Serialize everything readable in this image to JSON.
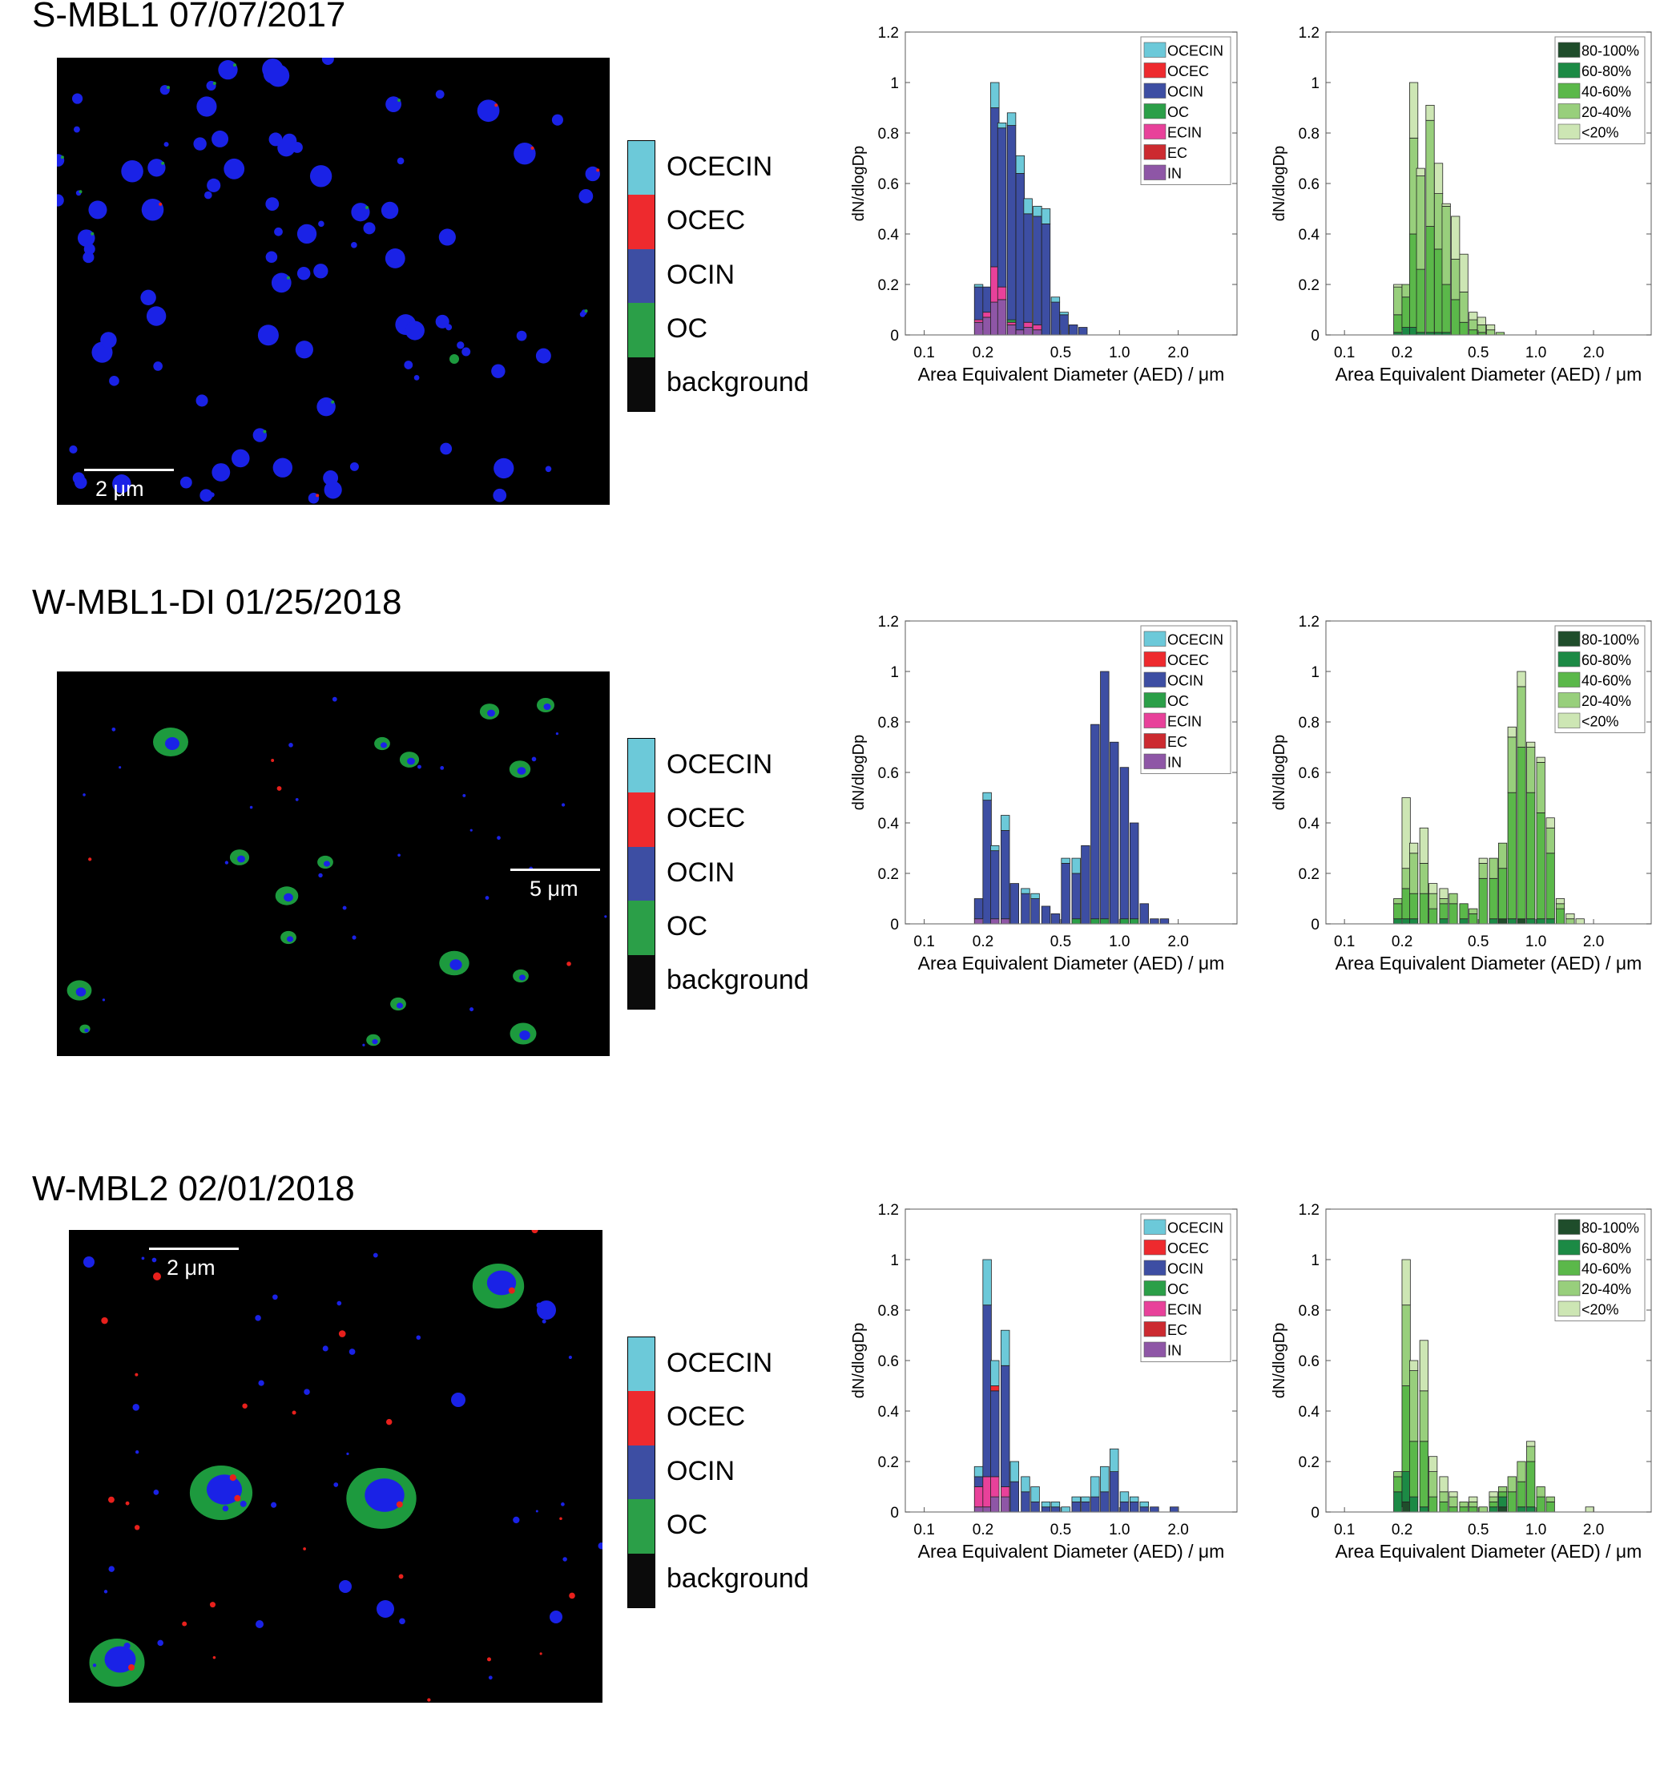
{
  "panels": [
    {
      "title": "S-MBL1 07/07/2017",
      "scale_label": "2 μm",
      "colorbar": [
        "OCECIN",
        "OCEC",
        "OCIN",
        "OC",
        "background"
      ],
      "micro_style": "blue"
    },
    {
      "title": "W-MBL1-DI 01/25/2018",
      "scale_label": "5 μm",
      "colorbar": [
        "OCECIN",
        "OCEC",
        "OCIN",
        "OC",
        "background"
      ],
      "micro_style": "green-ring"
    },
    {
      "title": "W-MBL2 02/01/2018",
      "scale_label": "2 μm",
      "colorbar": [
        "OCECIN",
        "OCEC",
        "OCIN",
        "OC",
        "background"
      ],
      "micro_style": "mixed"
    }
  ],
  "colors": {
    "OCECIN": "#6cc9d9",
    "OCEC": "#ee2a2e",
    "OCIN": "#3d4ea3",
    "OC": "#2b9f48",
    "ECIN": "#e8419a",
    "EC": "#cc2a30",
    "IN": "#8e56a6",
    "background": "#0b0b0b",
    "80-100%": "#1f4d2b",
    "60-80%": "#1c8a45",
    "40-60%": "#5bb84a",
    "20-40%": "#98cf7c",
    "<20%": "#cde6b4"
  },
  "axis": {
    "ylabel": "dN/dlogDp",
    "xlabel": "Area Equivalent Diameter (AED) / μm",
    "yticks": [
      "0",
      "0.2",
      "0.4",
      "0.6",
      "0.8",
      "1",
      "1.2"
    ],
    "xticks_row1": [
      "0.1",
      "0.2",
      "0.5",
      "1.0",
      "2.0"
    ],
    "xticks_row2": [
      "0.1",
      "0.2",
      "0.5",
      "1.0",
      "2.0"
    ],
    "xticks_row3": [
      "0.1",
      "0.2",
      "0.5",
      "1.0",
      "2.0"
    ]
  },
  "chart_data": [
    {
      "type": "bar",
      "stacked": true,
      "panel": "S-MBL1 07/07/2017",
      "legend": [
        "OCECIN",
        "OCEC",
        "OCIN",
        "OC",
        "ECIN",
        "EC",
        "IN"
      ],
      "legend_position": "top-right",
      "bins_AED_um": [
        0.19,
        0.21,
        0.23,
        0.25,
        0.28,
        0.31,
        0.34,
        0.38,
        0.42,
        0.47,
        0.52,
        0.58,
        0.65
      ],
      "xlim": [
        0.08,
        4.0
      ],
      "ylim": [
        0,
        1.2
      ],
      "series": [
        {
          "name": "IN",
          "values": [
            0.05,
            0.07,
            0.13,
            0.14,
            0.04,
            0.02,
            0.03,
            0.02,
            0,
            0,
            0,
            0,
            0
          ]
        },
        {
          "name": "EC",
          "values": [
            0,
            0,
            0,
            0,
            0,
            0,
            0,
            0,
            0,
            0,
            0,
            0,
            0
          ]
        },
        {
          "name": "ECIN",
          "values": [
            0.01,
            0.02,
            0.14,
            0.05,
            0.01,
            0,
            0.02,
            0.02,
            0,
            0,
            0,
            0,
            0
          ]
        },
        {
          "name": "OC",
          "values": [
            0,
            0,
            0,
            0,
            0.01,
            0,
            0,
            0,
            0,
            0,
            0,
            0,
            0
          ]
        },
        {
          "name": "OCIN",
          "values": [
            0.13,
            0.1,
            0.63,
            0.63,
            0.77,
            0.62,
            0.43,
            0.43,
            0.44,
            0.13,
            0.08,
            0.04,
            0.03
          ]
        },
        {
          "name": "OCEC",
          "values": [
            0,
            0,
            0,
            0,
            0,
            0,
            0,
            0,
            0,
            0,
            0,
            0,
            0
          ]
        },
        {
          "name": "OCECIN",
          "values": [
            0.01,
            0,
            0.1,
            0.02,
            0.05,
            0.07,
            0.06,
            0.04,
            0.06,
            0.02,
            0.01,
            0,
            0
          ]
        }
      ]
    },
    {
      "type": "bar",
      "stacked": true,
      "panel": "S-MBL1 07/07/2017",
      "legend": [
        "80-100%",
        "60-80%",
        "40-60%",
        "20-40%",
        "<20%"
      ],
      "legend_position": "top-right",
      "bins_AED_um": [
        0.19,
        0.21,
        0.23,
        0.25,
        0.28,
        0.31,
        0.34,
        0.38,
        0.42,
        0.47,
        0.52,
        0.58,
        0.65
      ],
      "xlim": [
        0.08,
        4.0
      ],
      "ylim": [
        0,
        1.2
      ],
      "series": [
        {
          "name": "80-100%",
          "values": [
            0,
            0,
            0,
            0,
            0,
            0,
            0,
            0,
            0,
            0,
            0,
            0,
            0
          ]
        },
        {
          "name": "60-80%",
          "values": [
            0.01,
            0.03,
            0.03,
            0.01,
            0.01,
            0.01,
            0.01,
            0,
            0,
            0,
            0,
            0,
            0
          ]
        },
        {
          "name": "40-60%",
          "values": [
            0.07,
            0.12,
            0.37,
            0.25,
            0.42,
            0.33,
            0.19,
            0.14,
            0.05,
            0.02,
            0.01,
            0,
            0
          ]
        },
        {
          "name": "20-40%",
          "values": [
            0.11,
            0.05,
            0.38,
            0.37,
            0.42,
            0.22,
            0.31,
            0.16,
            0.12,
            0.04,
            0.03,
            0.02,
            0.01
          ]
        },
        {
          "name": "<20%",
          "values": [
            0.01,
            0,
            0.22,
            0.03,
            0.06,
            0.12,
            0.01,
            0.17,
            0.15,
            0.03,
            0.03,
            0.02,
            0
          ]
        }
      ]
    },
    {
      "type": "bar",
      "stacked": true,
      "panel": "W-MBL1-DI 01/25/2018",
      "legend": [
        "OCECIN",
        "OCEC",
        "OCIN",
        "OC",
        "ECIN",
        "EC",
        "IN"
      ],
      "legend_position": "top-right",
      "bins_AED_um": [
        0.19,
        0.21,
        0.23,
        0.26,
        0.29,
        0.33,
        0.37,
        0.42,
        0.47,
        0.53,
        0.6,
        0.67,
        0.75,
        0.84,
        0.94,
        1.06,
        1.19,
        1.34,
        1.51,
        1.7,
        1.91
      ],
      "xlim": [
        0.08,
        4.0
      ],
      "ylim": [
        0,
        1.2
      ],
      "series": [
        {
          "name": "IN",
          "values": [
            0.02,
            0,
            0.02,
            0.02,
            0,
            0,
            0,
            0,
            0,
            0,
            0,
            0,
            0,
            0,
            0,
            0,
            0,
            0,
            0,
            0,
            0
          ]
        },
        {
          "name": "EC",
          "values": [
            0,
            0,
            0,
            0,
            0,
            0,
            0,
            0,
            0,
            0,
            0,
            0,
            0,
            0,
            0,
            0,
            0,
            0,
            0,
            0,
            0
          ]
        },
        {
          "name": "ECIN",
          "values": [
            0,
            0,
            0,
            0,
            0,
            0,
            0,
            0,
            0,
            0,
            0,
            0,
            0,
            0,
            0,
            0,
            0,
            0,
            0,
            0,
            0
          ]
        },
        {
          "name": "OC",
          "values": [
            0,
            0,
            0,
            0,
            0,
            0,
            0,
            0,
            0,
            0,
            0.02,
            0,
            0.02,
            0.02,
            0,
            0.02,
            0.02,
            0,
            0,
            0,
            0
          ]
        },
        {
          "name": "OCIN",
          "values": [
            0.08,
            0.49,
            0.27,
            0.35,
            0.16,
            0.12,
            0.1,
            0.07,
            0.04,
            0.24,
            0.18,
            0.31,
            0.77,
            0.98,
            0.72,
            0.6,
            0.38,
            0.08,
            0.02,
            0.02,
            0
          ]
        },
        {
          "name": "OCEC",
          "values": [
            0,
            0,
            0,
            0,
            0,
            0,
            0,
            0,
            0,
            0,
            0,
            0,
            0,
            0,
            0,
            0,
            0,
            0,
            0,
            0,
            0
          ]
        },
        {
          "name": "OCECIN",
          "values": [
            0,
            0.03,
            0.02,
            0.06,
            0,
            0.02,
            0.02,
            0,
            0,
            0.02,
            0.06,
            0,
            0,
            0,
            0,
            0,
            0,
            0,
            0,
            0,
            0
          ]
        }
      ]
    },
    {
      "type": "bar",
      "stacked": true,
      "panel": "W-MBL1-DI 01/25/2018",
      "legend": [
        "80-100%",
        "60-80%",
        "40-60%",
        "20-40%",
        "<20%"
      ],
      "legend_position": "top-right",
      "bins_AED_um": [
        0.19,
        0.21,
        0.23,
        0.26,
        0.29,
        0.33,
        0.37,
        0.42,
        0.47,
        0.53,
        0.6,
        0.67,
        0.75,
        0.84,
        0.94,
        1.06,
        1.19,
        1.34,
        1.51,
        1.7,
        1.91
      ],
      "xlim": [
        0.08,
        4.0
      ],
      "ylim": [
        0,
        1.2
      ],
      "series": [
        {
          "name": "80-100%",
          "values": [
            0,
            0,
            0,
            0,
            0,
            0,
            0,
            0,
            0,
            0,
            0,
            0.02,
            0,
            0.02,
            0,
            0,
            0,
            0,
            0,
            0,
            0
          ]
        },
        {
          "name": "60-80%",
          "values": [
            0.02,
            0.02,
            0.02,
            0,
            0,
            0.02,
            0,
            0.02,
            0,
            0,
            0.02,
            0,
            0.02,
            0,
            0.02,
            0.02,
            0.02,
            0,
            0,
            0,
            0
          ]
        },
        {
          "name": "40-60%",
          "values": [
            0.06,
            0.12,
            0.1,
            0.12,
            0.06,
            0.06,
            0.08,
            0.06,
            0.04,
            0.18,
            0.16,
            0.2,
            0.5,
            0.68,
            0.5,
            0.42,
            0.26,
            0.06,
            0,
            0,
            0
          ]
        },
        {
          "name": "20-40%",
          "values": [
            0.02,
            0.08,
            0.16,
            0.12,
            0.06,
            0.02,
            0.04,
            0,
            0.02,
            0.06,
            0.08,
            0.1,
            0.22,
            0.24,
            0.18,
            0.2,
            0.1,
            0.02,
            0.02,
            0,
            0
          ]
        },
        {
          "name": "<20%",
          "values": [
            0,
            0.28,
            0.04,
            0.14,
            0.04,
            0.04,
            0,
            0,
            0,
            0.02,
            0,
            0,
            0.04,
            0.06,
            0.02,
            0.02,
            0.04,
            0.02,
            0.02,
            0.02,
            0
          ]
        }
      ]
    },
    {
      "type": "bar",
      "stacked": true,
      "panel": "W-MBL2 02/01/2018",
      "legend": [
        "OCECIN",
        "OCEC",
        "OCIN",
        "OC",
        "ECIN",
        "EC",
        "IN"
      ],
      "legend_position": "top-right",
      "bins_AED_um": [
        0.19,
        0.21,
        0.23,
        0.26,
        0.29,
        0.33,
        0.37,
        0.42,
        0.47,
        0.53,
        0.6,
        0.67,
        0.75,
        0.84,
        0.94,
        1.06,
        1.19,
        1.34,
        1.51,
        1.7,
        1.91
      ],
      "xlim": [
        0.08,
        4.0
      ],
      "ylim": [
        0,
        1.2
      ],
      "series": [
        {
          "name": "IN",
          "values": [
            0.02,
            0.02,
            0.06,
            0.06,
            0,
            0,
            0,
            0,
            0,
            0,
            0,
            0,
            0,
            0,
            0,
            0,
            0,
            0,
            0,
            0,
            0
          ]
        },
        {
          "name": "EC",
          "values": [
            0,
            0,
            0,
            0,
            0,
            0,
            0,
            0,
            0,
            0,
            0,
            0,
            0,
            0,
            0,
            0,
            0,
            0,
            0,
            0,
            0
          ]
        },
        {
          "name": "ECIN",
          "values": [
            0.08,
            0.12,
            0.08,
            0.04,
            0,
            0,
            0,
            0,
            0,
            0,
            0,
            0,
            0,
            0,
            0,
            0,
            0,
            0,
            0,
            0,
            0
          ]
        },
        {
          "name": "OC",
          "values": [
            0,
            0,
            0,
            0,
            0,
            0,
            0,
            0,
            0,
            0,
            0,
            0,
            0,
            0,
            0,
            0,
            0,
            0,
            0,
            0,
            0
          ]
        },
        {
          "name": "OCIN",
          "values": [
            0.04,
            0.68,
            0.34,
            0.48,
            0.12,
            0.08,
            0.04,
            0.02,
            0.02,
            0,
            0.04,
            0.04,
            0.06,
            0.08,
            0.16,
            0.04,
            0.04,
            0.02,
            0.02,
            0,
            0.02
          ]
        },
        {
          "name": "OCEC",
          "values": [
            0,
            0,
            0.02,
            0,
            0,
            0,
            0,
            0,
            0,
            0,
            0,
            0,
            0,
            0,
            0,
            0,
            0,
            0,
            0,
            0,
            0
          ]
        },
        {
          "name": "OCECIN",
          "values": [
            0.04,
            0.18,
            0.1,
            0.14,
            0.08,
            0.06,
            0.06,
            0.02,
            0.02,
            0.02,
            0.02,
            0.02,
            0.08,
            0.1,
            0.09,
            0.04,
            0.02,
            0.02,
            0,
            0,
            0
          ]
        }
      ]
    },
    {
      "type": "bar",
      "stacked": true,
      "panel": "W-MBL2 02/01/2018",
      "legend": [
        "80-100%",
        "60-80%",
        "40-60%",
        "20-40%",
        "<20%"
      ],
      "legend_position": "top-right",
      "bins_AED_um": [
        0.19,
        0.21,
        0.23,
        0.26,
        0.29,
        0.33,
        0.37,
        0.42,
        0.47,
        0.53,
        0.6,
        0.67,
        0.75,
        0.84,
        0.94,
        1.06,
        1.19,
        1.34,
        1.51,
        1.7,
        1.91
      ],
      "xlim": [
        0.08,
        4.0
      ],
      "ylim": [
        0,
        1.2
      ],
      "series": [
        {
          "name": "80-100%",
          "values": [
            0,
            0.04,
            0,
            0,
            0,
            0,
            0,
            0,
            0,
            0,
            0,
            0.02,
            0,
            0,
            0,
            0,
            0,
            0,
            0,
            0,
            0
          ]
        },
        {
          "name": "60-80%",
          "values": [
            0.08,
            0.12,
            0.06,
            0.02,
            0,
            0,
            0,
            0,
            0,
            0,
            0.02,
            0.04,
            0,
            0.02,
            0.02,
            0,
            0,
            0,
            0,
            0,
            0
          ]
        },
        {
          "name": "40-60%",
          "values": [
            0.06,
            0.34,
            0.22,
            0.26,
            0.06,
            0.04,
            0.02,
            0.02,
            0.02,
            0,
            0.02,
            0.02,
            0.08,
            0.1,
            0.18,
            0.06,
            0.04,
            0,
            0,
            0,
            0
          ]
        },
        {
          "name": "20-40%",
          "values": [
            0.02,
            0.32,
            0.28,
            0.2,
            0.1,
            0.04,
            0.04,
            0.02,
            0.02,
            0.02,
            0.02,
            0.02,
            0.06,
            0.08,
            0.06,
            0.04,
            0.02,
            0,
            0,
            0,
            0
          ]
        },
        {
          "name": "<20%",
          "values": [
            0,
            0.18,
            0.04,
            0.2,
            0.06,
            0.06,
            0.02,
            0,
            0.02,
            0,
            0.02,
            0,
            0,
            0,
            0.02,
            0,
            0,
            0,
            0,
            0,
            0.02
          ]
        }
      ]
    }
  ]
}
